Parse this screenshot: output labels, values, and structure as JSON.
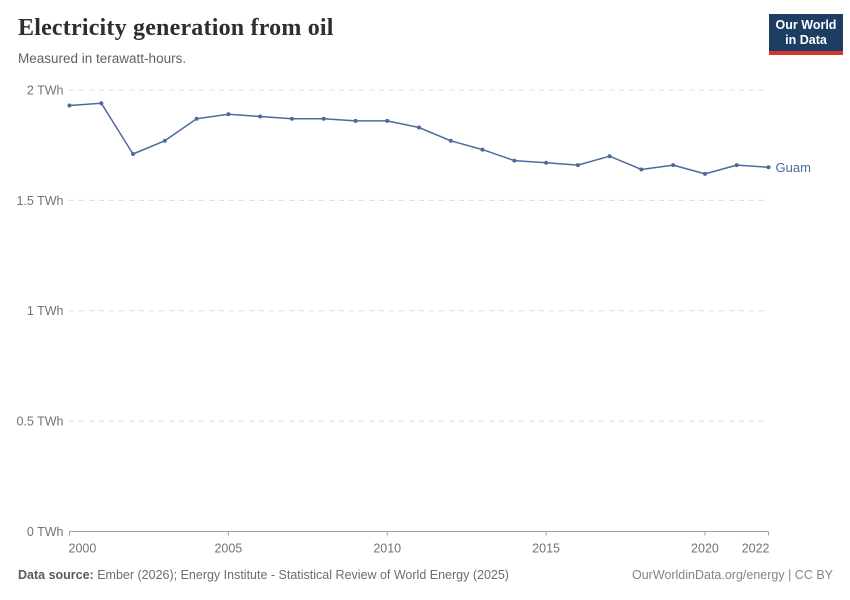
{
  "header": {
    "title": "Electricity generation from oil",
    "subtitle": "Measured in terawatt-hours.",
    "logo": {
      "line1": "Our World",
      "line2": "in Data"
    }
  },
  "chart_data": {
    "type": "line",
    "title": "Electricity generation from oil",
    "ylabel": "terawatt-hours",
    "xlabel": "",
    "grid": "dashed-horizontal",
    "legend_position": "end-of-line",
    "xlim": [
      2000,
      2022
    ],
    "ylim": [
      0,
      2
    ],
    "x_ticks": [
      2000,
      2005,
      2010,
      2015,
      2020,
      2022
    ],
    "y_ticks": [
      {
        "value": 0,
        "label": "0 TWh"
      },
      {
        "value": 0.5,
        "label": "0.5 TWh"
      },
      {
        "value": 1,
        "label": "1 TWh"
      },
      {
        "value": 1.5,
        "label": "1.5 TWh"
      },
      {
        "value": 2,
        "label": "2 TWh"
      }
    ],
    "series": [
      {
        "name": "Guam",
        "color": "#4c6a9c",
        "x": [
          2000,
          2001,
          2002,
          2003,
          2004,
          2005,
          2006,
          2007,
          2008,
          2009,
          2010,
          2011,
          2012,
          2013,
          2014,
          2015,
          2016,
          2017,
          2018,
          2019,
          2020,
          2021,
          2022
        ],
        "values": [
          1.93,
          1.94,
          1.71,
          1.77,
          1.87,
          1.89,
          1.88,
          1.87,
          1.87,
          1.86,
          1.86,
          1.83,
          1.77,
          1.73,
          1.68,
          1.67,
          1.66,
          1.7,
          1.64,
          1.66,
          1.62,
          1.66,
          1.65
        ]
      }
    ]
  },
  "footer": {
    "source_label": "Data source:",
    "source_text": " Ember (2026); Energy Institute - Statistical Review of World Energy (2025)",
    "license": "OurWorldinData.org/energy | CC BY"
  },
  "colors": {
    "line": "#4c6a9c",
    "grid": "#dcdcdc",
    "axis": "#a1a1a1",
    "tick_text": "#737373",
    "logo_bg": "#1d3d63",
    "logo_accent": "#d6352b"
  }
}
